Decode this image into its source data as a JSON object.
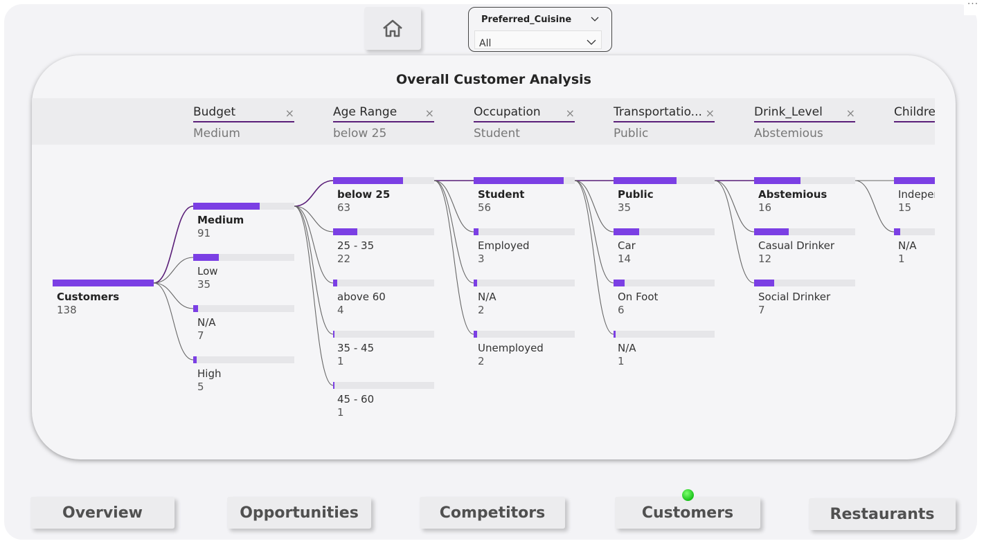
{
  "slicer": {
    "title": "Preferred_Cuisine",
    "value": "All"
  },
  "visual": {
    "title": "Overall Customer Analysis",
    "levels": [
      {
        "name": "Budget",
        "selected": "Medium"
      },
      {
        "name": "Age Range",
        "selected": "below 25"
      },
      {
        "name": "Occupation",
        "selected": "Student"
      },
      {
        "name": "Transportatio...",
        "selected": "Public"
      },
      {
        "name": "Drink_Level",
        "selected": "Abstemious"
      },
      {
        "name": "Childre",
        "selected": ""
      }
    ]
  },
  "tree": {
    "root": {
      "label": "Customers",
      "value": 138
    },
    "columns": [
      [
        {
          "label": "Medium",
          "value": 91,
          "selected": true
        },
        {
          "label": "Low",
          "value": 35
        },
        {
          "label": "N/A",
          "value": 7
        },
        {
          "label": "High",
          "value": 5
        }
      ],
      [
        {
          "label": "below 25",
          "value": 63,
          "selected": true
        },
        {
          "label": "25 - 35",
          "value": 22
        },
        {
          "label": "above 60",
          "value": 4
        },
        {
          "label": "35 - 45",
          "value": 1
        },
        {
          "label": "45 - 60",
          "value": 1
        }
      ],
      [
        {
          "label": "Student",
          "value": 56,
          "selected": true
        },
        {
          "label": "Employed",
          "value": 3
        },
        {
          "label": "N/A",
          "value": 2
        },
        {
          "label": "Unemployed",
          "value": 2
        }
      ],
      [
        {
          "label": "Public",
          "value": 35,
          "selected": true
        },
        {
          "label": "Car",
          "value": 14
        },
        {
          "label": "On Foot",
          "value": 6
        },
        {
          "label": "N/A",
          "value": 1
        }
      ],
      [
        {
          "label": "Abstemious",
          "value": 16,
          "selected": true
        },
        {
          "label": "Casual Drinker",
          "value": 12
        },
        {
          "label": "Social Drinker",
          "value": 7
        }
      ],
      [
        {
          "label": "Independent",
          "value": 15
        },
        {
          "label": "N/A",
          "value": 1
        }
      ]
    ]
  },
  "nav": {
    "overview": "Overview",
    "opportunities": "Opportunities",
    "competitors": "Competitors",
    "customers": "Customers",
    "restaurants": "Restaurants"
  },
  "colors": {
    "bar": "#7b3fe4",
    "track": "#e6e6e9",
    "link_selected": "#5a1e78",
    "link": "#666666"
  }
}
